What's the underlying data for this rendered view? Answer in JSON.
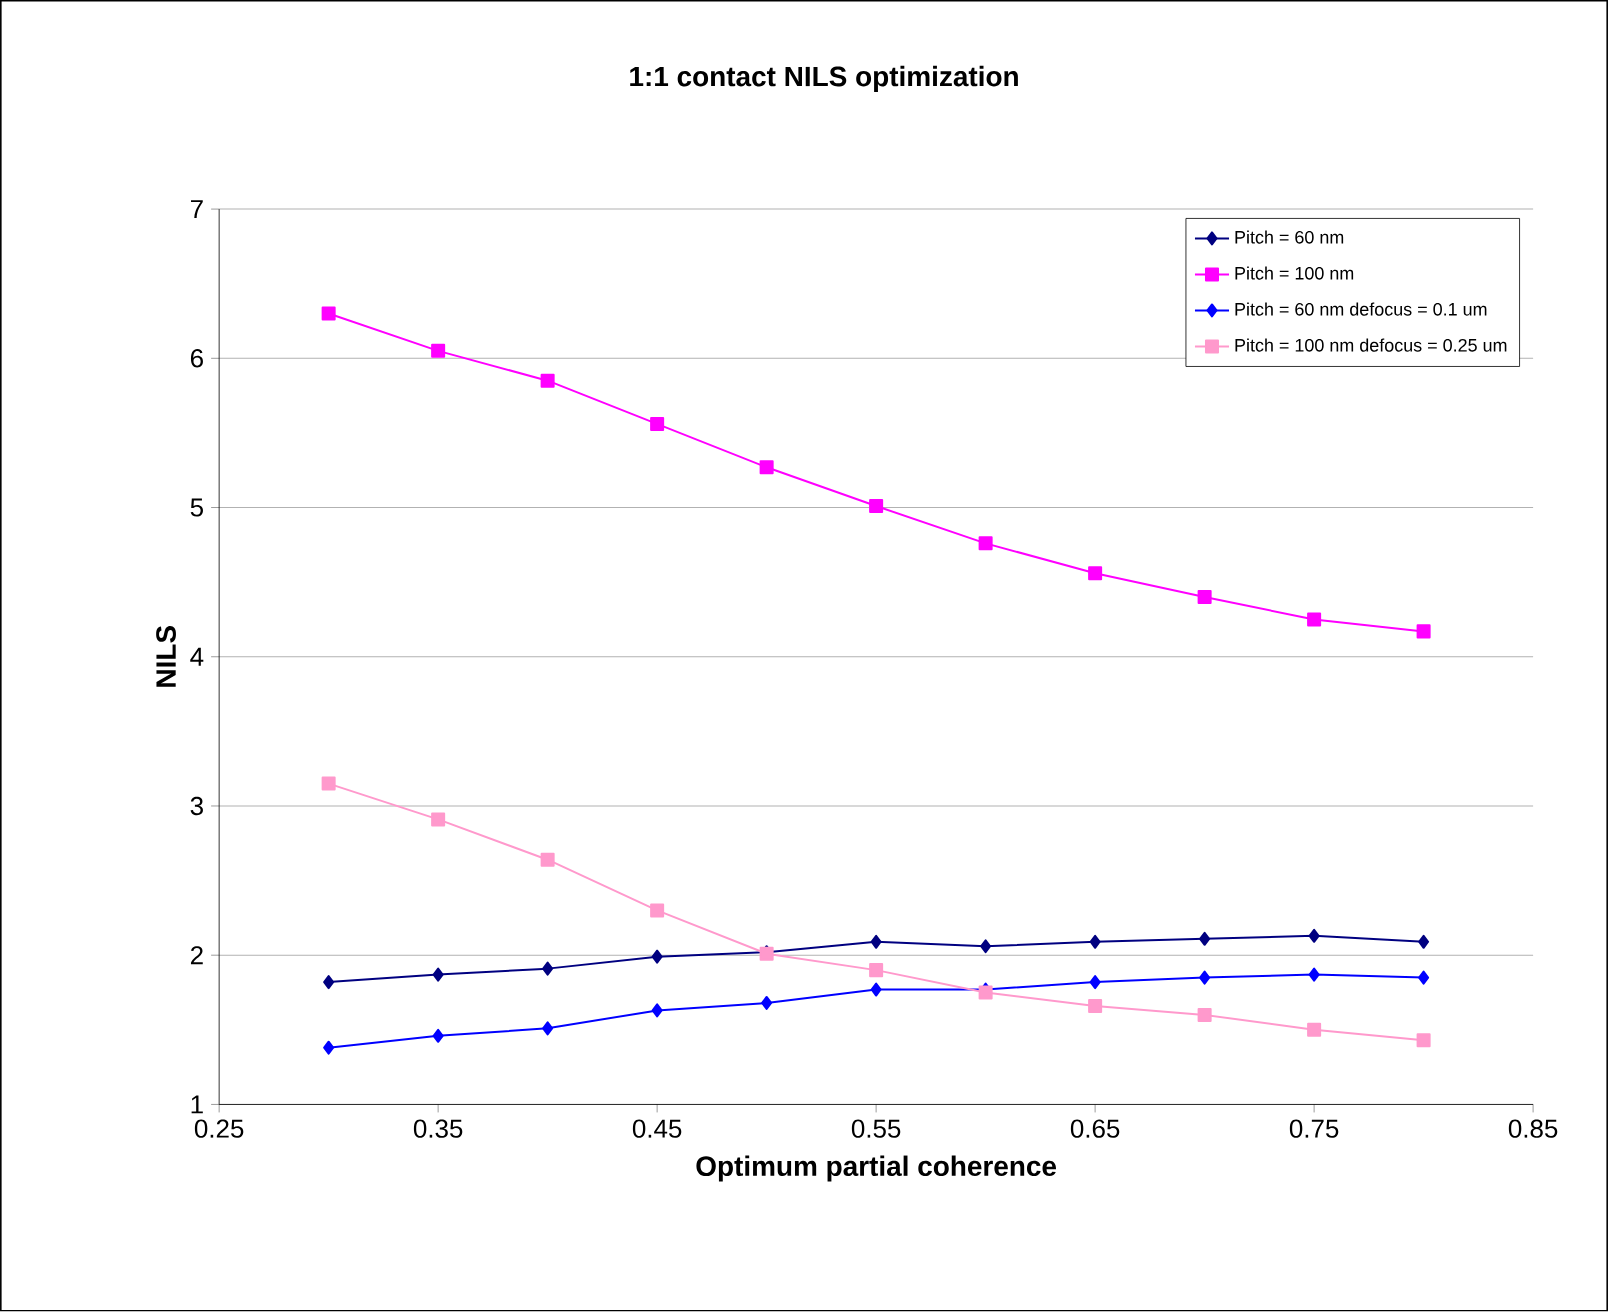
{
  "chart_data": {
    "type": "line",
    "title": "1:1 contact NILS optimization",
    "xlabel": "Optimum partial coherence",
    "ylabel": "NILS",
    "x": [
      0.3,
      0.35,
      0.4,
      0.45,
      0.5,
      0.55,
      0.6,
      0.65,
      0.7,
      0.75,
      0.8
    ],
    "series": [
      {
        "name": "Pitch = 60 nm",
        "color": "#000080",
        "marker": "diamond",
        "values": [
          1.82,
          1.87,
          1.91,
          1.99,
          2.02,
          2.09,
          2.06,
          2.09,
          2.11,
          2.13,
          2.09
        ]
      },
      {
        "name": "Pitch = 100 nm",
        "color": "#ff00ff",
        "marker": "square",
        "values": [
          6.3,
          6.05,
          5.85,
          5.56,
          5.27,
          5.01,
          4.76,
          4.56,
          4.4,
          4.25,
          4.17
        ]
      },
      {
        "name": "Pitch = 60 nm defocus = 0.1 um",
        "color": "#0000ff",
        "marker": "diamond",
        "values": [
          1.38,
          1.46,
          1.51,
          1.63,
          1.68,
          1.77,
          1.77,
          1.82,
          1.85,
          1.87,
          1.85
        ]
      },
      {
        "name": "Pitch = 100 nm defocus = 0.25 um",
        "color": "#ff99cc",
        "marker": "square",
        "values": [
          3.15,
          2.91,
          2.64,
          2.3,
          2.01,
          1.9,
          1.75,
          1.66,
          1.6,
          1.5,
          1.43
        ]
      }
    ],
    "xlim": [
      0.25,
      0.85
    ],
    "xticks": [
      0.25,
      0.35,
      0.45,
      0.55,
      0.65,
      0.75,
      0.85
    ],
    "ylim": [
      1,
      7
    ],
    "yticks": [
      1,
      2,
      3,
      4,
      5,
      6,
      7
    ],
    "grid": "y",
    "legend": "top right",
    "line_style": "solid"
  }
}
